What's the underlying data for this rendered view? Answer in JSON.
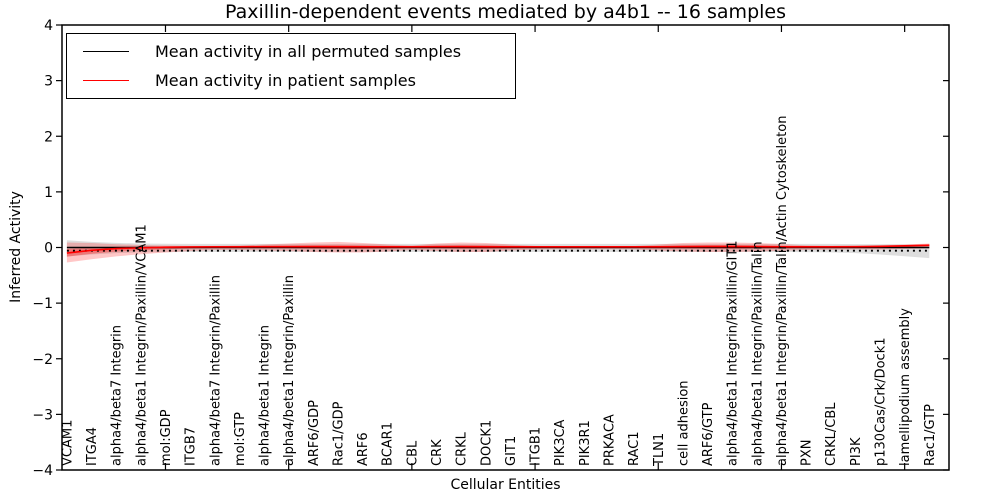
{
  "figure": {
    "title": "Paxillin-dependent events mediated by a4b1 -- 16 samples",
    "xlabel": "Cellular Entities",
    "ylabel": "Inferred Activity"
  },
  "legend": {
    "items": [
      {
        "label": "Mean activity in all permuted samples",
        "color": "#000000"
      },
      {
        "label": "Mean activity in patient samples",
        "color": "#ff0000"
      }
    ]
  },
  "chart_data": {
    "type": "line",
    "title": "Paxillin-dependent events mediated by a4b1 -- 16 samples",
    "xlabel": "Cellular Entities",
    "ylabel": "Inferred Activity",
    "ylim": [
      -4,
      4
    ],
    "ytick_values": [
      4,
      3,
      2,
      1,
      0,
      -1,
      -2,
      -3,
      -4
    ],
    "ytick_labels": [
      "4",
      "3",
      "2",
      "1",
      "0",
      "−1",
      "−2",
      "−3",
      "−4"
    ],
    "xtick_major_indices": [
      4,
      9,
      14,
      19,
      24,
      29,
      34
    ],
    "grid": false,
    "legend_position": "upper left",
    "categories": [
      "VCAM1",
      "ITGA4",
      "alpha4/beta7 Integrin",
      "alpha4/beta1 Integrin/Paxillin/VCAM1",
      "mol:GDP",
      "ITGB7",
      "alpha4/beta7 Integrin/Paxillin",
      "mol:GTP",
      "alpha4/beta1 Integrin",
      "alpha4/beta1 Integrin/Paxillin",
      "ARF6/GDP",
      "Rac1/GDP",
      "ARF6",
      "BCAR1",
      "CBL",
      "CRK",
      "CRKL",
      "DOCK1",
      "GIT1",
      "ITGB1",
      "PIK3CA",
      "PIK3R1",
      "PRKACA",
      "RAC1",
      "TLN1",
      "cell adhesion",
      "ARF6/GTP",
      "alpha4/beta1 Integrin/Paxillin/GIT1",
      "alpha4/beta1 Integrin/Paxillin/Talin",
      "alpha4/beta1 Integrin/Paxillin/Talin/Actin Cytoskeleton",
      "PXN",
      "CRKL/CBL",
      "PI3K",
      "p130Cas/Crk/Dock1",
      "lamellipodium assembly",
      "Rac1/GTP"
    ],
    "series": [
      {
        "name": "Mean activity in all permuted samples",
        "color": "#000000",
        "style": "solid",
        "values": [
          0,
          0,
          0,
          0,
          0,
          0,
          0,
          0,
          0,
          0,
          0,
          0,
          0,
          0,
          0,
          0,
          0,
          0,
          0,
          0,
          0,
          0,
          0,
          0,
          0,
          0,
          0,
          0,
          0,
          0,
          0,
          0,
          0,
          0,
          0,
          0
        ]
      },
      {
        "name": "Mean activity in patient samples",
        "color": "#ff0000",
        "style": "solid",
        "values": [
          -0.1,
          -0.05,
          -0.02,
          -0.005,
          0.005,
          0.01,
          0.012,
          0.013,
          0.015,
          0.015,
          0.015,
          0.013,
          0.012,
          0.012,
          0.013,
          0.015,
          0.015,
          0.013,
          0.012,
          0.012,
          0.012,
          0.012,
          0.012,
          0.012,
          0.013,
          0.015,
          0.016,
          0.016,
          0.015,
          0.013,
          0.012,
          0.012,
          0.015,
          0.02,
          0.03,
          0.042
        ]
      }
    ],
    "bands": [
      {
        "name": "permuted samples range",
        "color": "rgba(0,0,0,0.13)",
        "hi": [
          0.13,
          0.1,
          0.082,
          0.072,
          0.066,
          0.065,
          0.065,
          0.065,
          0.065,
          0.065,
          0.065,
          0.065,
          0.065,
          0.065,
          0.065,
          0.065,
          0.065,
          0.065,
          0.065,
          0.065,
          0.065,
          0.065,
          0.065,
          0.065,
          0.065,
          0.065,
          0.065,
          0.065,
          0.065,
          0.065,
          0.065,
          0.064,
          0.062,
          0.06,
          0.056,
          0.05
        ],
        "lo": [
          -0.16,
          -0.125,
          -0.1,
          -0.088,
          -0.082,
          -0.08,
          -0.08,
          -0.08,
          -0.08,
          -0.08,
          -0.08,
          -0.08,
          -0.08,
          -0.08,
          -0.08,
          -0.08,
          -0.08,
          -0.08,
          -0.08,
          -0.08,
          -0.08,
          -0.08,
          -0.08,
          -0.08,
          -0.08,
          -0.08,
          -0.08,
          -0.08,
          -0.08,
          -0.08,
          -0.082,
          -0.088,
          -0.1,
          -0.125,
          -0.158,
          -0.19
        ]
      },
      {
        "name": "patient samples range",
        "color": "rgba(255,0,0,0.22)",
        "hi": [
          0.09,
          0.08,
          0.06,
          0.045,
          0.036,
          0.028,
          0.028,
          0.036,
          0.054,
          0.072,
          0.09,
          0.1,
          0.081,
          0.054,
          0.036,
          0.072,
          0.09,
          0.081,
          0.054,
          0.028,
          0.022,
          0.022,
          0.022,
          0.026,
          0.054,
          0.081,
          0.09,
          0.09,
          0.081,
          0.063,
          0.038,
          0.032,
          0.032,
          0.045,
          0.054,
          0.072
        ],
        "lo": [
          -0.27,
          -0.21,
          -0.16,
          -0.12,
          -0.09,
          -0.063,
          -0.045,
          -0.045,
          -0.054,
          -0.063,
          -0.081,
          -0.09,
          -0.09,
          -0.072,
          -0.045,
          -0.063,
          -0.081,
          -0.081,
          -0.054,
          -0.036,
          -0.03,
          -0.03,
          -0.03,
          -0.035,
          -0.054,
          -0.072,
          -0.081,
          -0.081,
          -0.072,
          -0.06,
          -0.045,
          -0.04,
          -0.035,
          -0.036,
          -0.027,
          -0.018
        ]
      }
    ],
    "zero_line": {
      "value": 0,
      "style": "dotted",
      "color": "#000000"
    }
  }
}
